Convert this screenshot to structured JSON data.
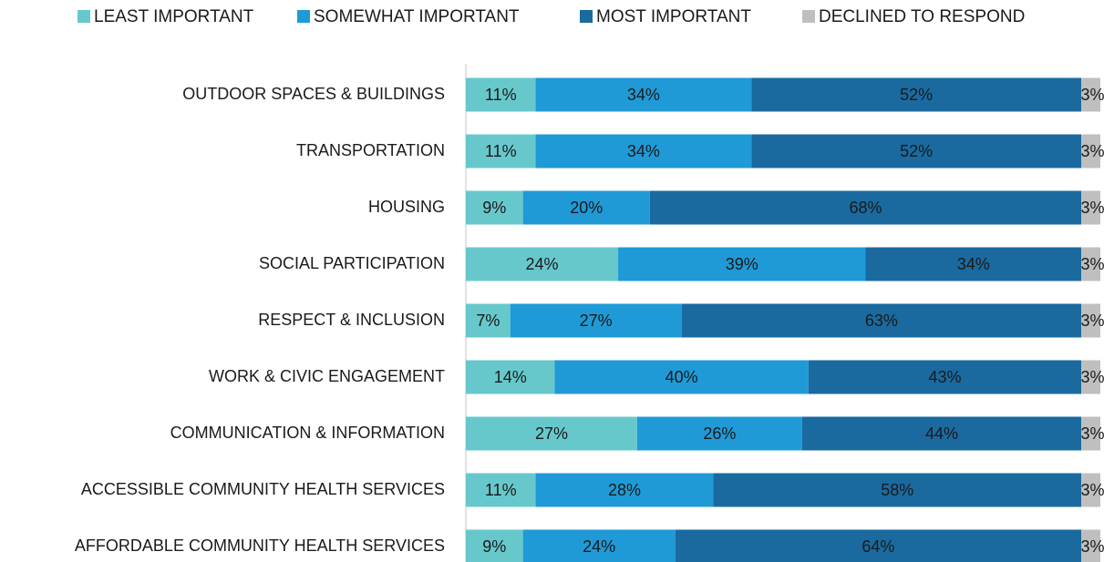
{
  "chart_data": {
    "type": "stacked-barh",
    "categories": [
      "OUTDOOR SPACES & BUILDINGS",
      "TRANSPORTATION",
      "HOUSING",
      "SOCIAL PARTICIPATION",
      "RESPECT & INCLUSION",
      "WORK & CIVIC ENGAGEMENT",
      "COMMUNICATION & INFORMATION",
      "ACCESSIBLE COMMUNITY HEALTH SERVICES",
      "AFFORDABLE COMMUNITY HEALTH SERVICES"
    ],
    "series": [
      {
        "name": "LEAST IMPORTANT",
        "color": "#67c8cc",
        "values": [
          11,
          11,
          9,
          24,
          7,
          14,
          27,
          11,
          9
        ],
        "value_labels": [
          "11%",
          "11%",
          "9%",
          "24%",
          "7%",
          "14%",
          "27%",
          "11%",
          "9%"
        ]
      },
      {
        "name": "SOMEWHAT IMPORTANT",
        "color": "#1f9ad6",
        "values": [
          34,
          34,
          20,
          39,
          27,
          40,
          26,
          28,
          24
        ],
        "value_labels": [
          "34%",
          "34%",
          "20%",
          "39%",
          "27%",
          "40%",
          "26%",
          "28%",
          "24%"
        ]
      },
      {
        "name": "MOST IMPORTANT",
        "color": "#1a6aa0",
        "values": [
          52,
          52,
          68,
          34,
          63,
          43,
          44,
          58,
          64
        ],
        "value_labels": [
          "52%",
          "52%",
          "68%",
          "34%",
          "63%",
          "43%",
          "44%",
          "58%",
          "64%"
        ]
      },
      {
        "name": "DECLINED TO RESPOND",
        "color": "#bfbfbf",
        "values": [
          3,
          3,
          3,
          3,
          3,
          3,
          3,
          3,
          3
        ],
        "value_labels": [
          "3%",
          "3%",
          "3%",
          "3%",
          "3%",
          "3%",
          "3%",
          "3%",
          "3%"
        ]
      }
    ],
    "xlim": [
      0,
      100
    ],
    "legend": "top"
  }
}
